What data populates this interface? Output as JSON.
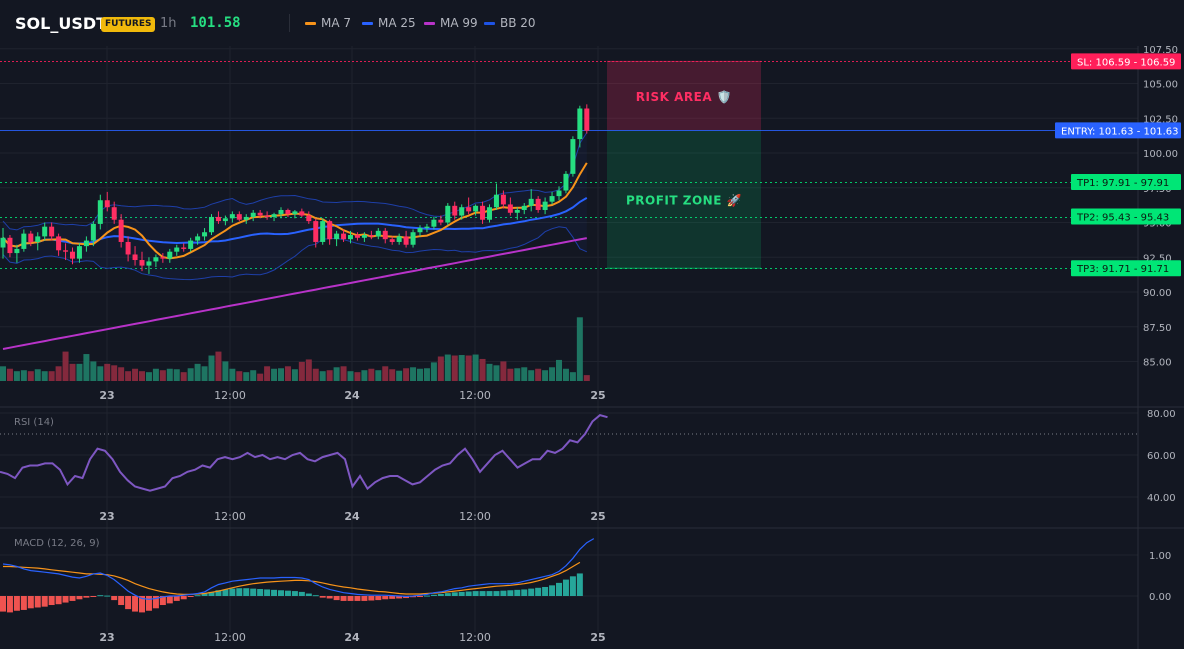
{
  "header": {
    "symbol": "SOL_USDT",
    "badge": "FUTURES",
    "timeframe": "1h",
    "last_price": "101.58",
    "legend": [
      {
        "label": "MA 7",
        "color": "#f7931a"
      },
      {
        "label": "MA 25",
        "color": "#2962ff"
      },
      {
        "label": "MA 99",
        "color": "#b833c9"
      },
      {
        "label": "BB 20",
        "color": "#1e53e5"
      }
    ]
  },
  "colors": {
    "background": "#131722",
    "up": "#26de81",
    "down": "#ff2e63",
    "rsi": "#7e57c2",
    "macd": "#2962ff",
    "signal": "#f7931a",
    "hist_up": "#26a69a",
    "hist_down": "#ef5350",
    "entry": "#2962ff",
    "sl": "#ff1f5a",
    "tp": "#00e676"
  },
  "chart_data": [
    {
      "type": "candlestick",
      "title": "SOL_USDT 1h",
      "ylim": [
        83,
        107.5
      ],
      "y_ticks": [
        "85.00",
        "87.50",
        "90.00",
        "92.50",
        "95.00",
        "97.50",
        "100.00",
        "102.50",
        "105.00",
        "107.50"
      ],
      "x_ticks": [
        "23",
        "12:00",
        "24",
        "12:00",
        "25"
      ],
      "candles": [
        [
          93.2,
          94.6,
          92.4,
          93.9
        ],
        [
          93.9,
          94.1,
          92.5,
          92.8
        ],
        [
          92.8,
          93.4,
          92.1,
          93.1
        ],
        [
          93.1,
          94.5,
          92.9,
          94.2
        ],
        [
          94.2,
          94.4,
          93.3,
          93.6
        ],
        [
          93.6,
          94.3,
          93.0,
          94.0
        ],
        [
          94.0,
          95.0,
          93.7,
          94.7
        ],
        [
          94.7,
          95.0,
          93.7,
          94.0
        ],
        [
          94.0,
          94.2,
          92.6,
          93.0
        ],
        [
          93.0,
          93.5,
          92.3,
          92.9
        ],
        [
          92.9,
          93.2,
          92.0,
          92.4
        ],
        [
          92.4,
          93.5,
          92.1,
          93.3
        ],
        [
          93.3,
          94.0,
          92.9,
          93.7
        ],
        [
          93.7,
          95.1,
          93.3,
          94.9
        ],
        [
          94.9,
          97.0,
          94.5,
          96.6
        ],
        [
          96.6,
          97.2,
          95.8,
          96.1
        ],
        [
          96.1,
          96.5,
          94.9,
          95.2
        ],
        [
          95.2,
          95.6,
          93.2,
          93.6
        ],
        [
          93.6,
          94.0,
          92.2,
          92.7
        ],
        [
          92.7,
          93.3,
          91.9,
          92.3
        ],
        [
          92.3,
          92.9,
          91.5,
          91.9
        ],
        [
          91.9,
          92.5,
          91.3,
          92.2
        ],
        [
          92.2,
          92.7,
          91.8,
          92.5
        ],
        [
          92.5,
          92.8,
          92.1,
          92.4
        ],
        [
          92.4,
          93.1,
          92.1,
          92.9
        ],
        [
          92.9,
          93.4,
          92.6,
          93.2
        ],
        [
          93.2,
          93.5,
          92.9,
          93.1
        ],
        [
          93.1,
          93.9,
          92.9,
          93.7
        ],
        [
          93.7,
          94.2,
          93.4,
          94.0
        ],
        [
          94.0,
          94.6,
          93.7,
          94.3
        ],
        [
          94.3,
          95.6,
          94.1,
          95.4
        ],
        [
          95.4,
          95.8,
          94.9,
          95.1
        ],
        [
          95.1,
          95.5,
          94.8,
          95.3
        ],
        [
          95.3,
          95.8,
          95.0,
          95.6
        ],
        [
          95.6,
          95.8,
          95.1,
          95.2
        ],
        [
          95.2,
          95.6,
          94.9,
          95.4
        ],
        [
          95.4,
          95.9,
          95.1,
          95.7
        ],
        [
          95.7,
          95.9,
          95.3,
          95.5
        ],
        [
          95.5,
          95.8,
          95.2,
          95.4
        ],
        [
          95.4,
          95.7,
          95.1,
          95.6
        ],
        [
          95.6,
          96.1,
          95.3,
          95.9
        ],
        [
          95.9,
          96.0,
          95.4,
          95.6
        ],
        [
          95.6,
          95.9,
          95.3,
          95.8
        ],
        [
          95.8,
          96.0,
          95.4,
          95.5
        ],
        [
          95.5,
          95.8,
          94.9,
          95.1
        ],
        [
          95.1,
          95.3,
          93.2,
          93.6
        ],
        [
          93.6,
          95.3,
          93.4,
          95.1
        ],
        [
          95.1,
          95.2,
          93.4,
          93.8
        ],
        [
          93.8,
          94.4,
          93.3,
          94.2
        ],
        [
          94.2,
          94.5,
          93.6,
          93.8
        ],
        [
          93.8,
          94.4,
          93.5,
          94.1
        ],
        [
          94.1,
          94.3,
          93.7,
          93.9
        ],
        [
          93.9,
          94.3,
          93.6,
          94.1
        ],
        [
          94.1,
          94.4,
          93.8,
          94.0
        ],
        [
          94.0,
          94.6,
          93.8,
          94.4
        ],
        [
          94.4,
          94.6,
          93.5,
          93.8
        ],
        [
          93.8,
          94.0,
          93.4,
          93.6
        ],
        [
          93.6,
          94.2,
          93.4,
          94.0
        ],
        [
          94.0,
          94.4,
          93.2,
          93.4
        ],
        [
          93.4,
          94.5,
          93.2,
          94.3
        ],
        [
          94.3,
          94.8,
          94.0,
          94.6
        ],
        [
          94.6,
          94.9,
          94.3,
          94.7
        ],
        [
          94.7,
          95.4,
          94.5,
          95.2
        ],
        [
          95.2,
          95.5,
          94.8,
          95.0
        ],
        [
          95.0,
          96.4,
          94.8,
          96.2
        ],
        [
          96.2,
          96.5,
          95.2,
          95.5
        ],
        [
          95.5,
          96.3,
          95.2,
          96.1
        ],
        [
          96.1,
          96.8,
          95.6,
          95.8
        ],
        [
          95.8,
          96.3,
          95.5,
          96.2
        ],
        [
          96.2,
          96.5,
          94.9,
          95.2
        ],
        [
          95.2,
          96.3,
          95.0,
          96.1
        ],
        [
          96.1,
          97.8,
          95.9,
          97.0
        ],
        [
          97.0,
          97.3,
          96.0,
          96.3
        ],
        [
          96.3,
          96.8,
          95.5,
          95.7
        ],
        [
          95.7,
          96.1,
          95.2,
          95.9
        ],
        [
          95.9,
          96.4,
          95.6,
          96.2
        ],
        [
          96.2,
          97.4,
          95.8,
          96.7
        ],
        [
          96.7,
          96.9,
          95.7,
          95.9
        ],
        [
          95.9,
          96.8,
          95.6,
          96.5
        ],
        [
          96.5,
          97.2,
          96.3,
          96.9
        ],
        [
          96.9,
          97.6,
          96.6,
          97.3
        ],
        [
          97.3,
          98.7,
          97.1,
          98.5
        ],
        [
          98.5,
          101.2,
          98.3,
          101.0
        ],
        [
          101.0,
          103.4,
          100.4,
          103.2
        ],
        [
          103.2,
          103.5,
          101.4,
          101.6
        ]
      ],
      "volume": [
        3,
        2.5,
        2,
        2.2,
        2,
        2.4,
        2,
        2,
        3,
        6,
        3.5,
        3.5,
        5.5,
        4,
        3,
        3.5,
        3.2,
        2.8,
        2,
        2.5,
        2,
        1.8,
        2.5,
        2.2,
        2.5,
        2.4,
        1.8,
        2.6,
        3.5,
        3,
        5.2,
        6,
        4,
        2.5,
        2,
        1.8,
        2.2,
        1.5,
        3,
        2.5,
        2.6,
        3,
        2.4,
        3.9,
        4.4,
        2.5,
        2,
        2.2,
        2.8,
        3,
        2,
        1.8,
        2.2,
        2.5,
        2.2,
        3,
        2.4,
        2.1,
        2.6,
        2.8,
        2.5,
        2.6,
        3.8,
        5,
        5.4,
        5.2,
        5.3,
        5.2,
        5.4,
        4.5,
        3.5,
        3.2,
        4,
        2.5,
        2.6,
        2.8,
        2.2,
        2.5,
        2.2,
        2.8,
        4.3,
        2.5,
        1.8,
        13,
        1.2
      ],
      "levels": [
        {
          "label": "SL: 106.59",
          "value": 106.59,
          "value_label": "106.59"
        },
        {
          "label": "ENTRY: 101.63",
          "value": 101.63,
          "value_label": "101.63"
        },
        {
          "label": "TP1: 97.91",
          "value": 97.91,
          "value_label": "97.91"
        },
        {
          "label": "TP2: 95.43",
          "value": 95.43,
          "value_label": "95.43"
        },
        {
          "label": "TP3: 91.71",
          "value": 91.71,
          "value_label": "91.71"
        }
      ],
      "zones": [
        {
          "label": "RISK AREA 🛡️",
          "from": 101.63,
          "to": 106.59
        },
        {
          "label": "PROFIT ZONE 🚀",
          "from": 91.71,
          "to": 101.63
        }
      ]
    },
    {
      "type": "line",
      "name": "RSI (14)",
      "ylim": [
        37,
        82
      ],
      "y_ticks": [
        "40.00",
        "60.00",
        "80.00"
      ],
      "overbought": 70,
      "values": [
        52,
        51,
        49,
        54,
        55,
        55,
        56,
        56,
        53,
        46,
        50,
        49,
        58,
        63,
        62,
        58,
        52,
        48,
        45,
        44,
        43,
        44,
        45,
        49,
        50,
        52,
        53,
        55,
        54,
        58,
        59,
        58,
        59,
        61,
        59,
        60,
        58,
        59,
        58,
        60,
        61,
        58,
        57,
        59,
        60,
        61,
        58,
        45,
        50,
        44,
        47,
        49,
        50,
        50,
        48,
        46,
        47,
        50,
        53,
        55,
        56,
        60,
        63,
        58,
        52,
        56,
        60,
        62,
        58,
        54,
        56,
        58,
        58,
        62,
        61,
        63,
        67,
        66,
        70,
        76,
        79,
        78
      ]
    },
    {
      "type": "bar+line",
      "name": "MACD (12, 26, 9)",
      "ylim": [
        -0.6,
        1.6
      ],
      "y_ticks": [
        "0.00",
        "1.00"
      ],
      "macd": [
        0.78,
        0.76,
        0.72,
        0.66,
        0.62,
        0.6,
        0.58,
        0.56,
        0.54,
        0.5,
        0.46,
        0.44,
        0.48,
        0.54,
        0.56,
        0.5,
        0.4,
        0.26,
        0.12,
        0.02,
        -0.06,
        -0.08,
        -0.06,
        -0.02,
        0.0,
        0.0,
        0.02,
        0.04,
        0.06,
        0.1,
        0.2,
        0.28,
        0.32,
        0.36,
        0.38,
        0.4,
        0.42,
        0.44,
        0.44,
        0.44,
        0.45,
        0.45,
        0.45,
        0.44,
        0.4,
        0.3,
        0.22,
        0.16,
        0.12,
        0.08,
        0.06,
        0.04,
        0.03,
        0.02,
        0.02,
        0.02,
        0.01,
        0.0,
        -0.01,
        0.0,
        0.02,
        0.04,
        0.08,
        0.1,
        0.14,
        0.18,
        0.2,
        0.24,
        0.26,
        0.28,
        0.3,
        0.3,
        0.3,
        0.3,
        0.32,
        0.36,
        0.4,
        0.44,
        0.48,
        0.52,
        0.6,
        0.74,
        0.92,
        1.14,
        1.3,
        1.4
      ],
      "signal": [
        0.72,
        0.72,
        0.71,
        0.7,
        0.69,
        0.68,
        0.66,
        0.64,
        0.62,
        0.6,
        0.58,
        0.56,
        0.54,
        0.54,
        0.53,
        0.52,
        0.49,
        0.44,
        0.38,
        0.3,
        0.24,
        0.18,
        0.14,
        0.1,
        0.07,
        0.05,
        0.04,
        0.04,
        0.05,
        0.06,
        0.09,
        0.12,
        0.16,
        0.2,
        0.24,
        0.27,
        0.3,
        0.32,
        0.34,
        0.35,
        0.36,
        0.37,
        0.38,
        0.38,
        0.37,
        0.35,
        0.32,
        0.28,
        0.25,
        0.22,
        0.2,
        0.17,
        0.15,
        0.13,
        0.11,
        0.1,
        0.08,
        0.06,
        0.05,
        0.05,
        0.05,
        0.06,
        0.07,
        0.08,
        0.1,
        0.12,
        0.14,
        0.16,
        0.18,
        0.2,
        0.22,
        0.24,
        0.25,
        0.26,
        0.28,
        0.3,
        0.33,
        0.37,
        0.42,
        0.48,
        0.54,
        0.62,
        0.72,
        0.82
      ],
      "histogram": [
        -0.38,
        -0.4,
        -0.36,
        -0.34,
        -0.3,
        -0.28,
        -0.26,
        -0.22,
        -0.2,
        -0.16,
        -0.12,
        -0.08,
        -0.04,
        -0.02,
        0.02,
        0.01,
        -0.1,
        -0.22,
        -0.32,
        -0.38,
        -0.4,
        -0.36,
        -0.3,
        -0.22,
        -0.18,
        -0.12,
        -0.08,
        -0.02,
        0.02,
        0.06,
        0.1,
        0.14,
        0.16,
        0.18,
        0.19,
        0.19,
        0.18,
        0.17,
        0.16,
        0.15,
        0.14,
        0.13,
        0.12,
        0.1,
        0.06,
        0.02,
        -0.04,
        -0.06,
        -0.1,
        -0.12,
        -0.12,
        -0.12,
        -0.12,
        -0.11,
        -0.1,
        -0.08,
        -0.07,
        -0.06,
        -0.05,
        -0.03,
        -0.01,
        0.01,
        0.03,
        0.05,
        0.07,
        0.09,
        0.1,
        0.11,
        0.12,
        0.12,
        0.12,
        0.12,
        0.13,
        0.14,
        0.15,
        0.16,
        0.18,
        0.2,
        0.22,
        0.26,
        0.32,
        0.4,
        0.48,
        0.55
      ]
    }
  ]
}
